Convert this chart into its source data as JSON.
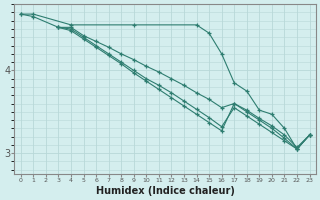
{
  "title": "",
  "xlabel": "Humidex (Indice chaleur)",
  "ylabel": "",
  "bg_color": "#d4eeee",
  "line_color": "#2e7d70",
  "grid_color": "#b8d8d8",
  "axis_color": "#888888",
  "tick_label_color": "#555555",
  "xlim": [
    -0.5,
    23.5
  ],
  "ylim": [
    2.75,
    4.8
  ],
  "yticks": [
    3,
    4
  ],
  "xticks": [
    0,
    1,
    2,
    3,
    4,
    5,
    6,
    7,
    8,
    9,
    10,
    11,
    12,
    13,
    14,
    15,
    16,
    17,
    18,
    19,
    20,
    21,
    22,
    23
  ],
  "lines": [
    {
      "x": [
        0,
        1,
        4,
        9,
        14,
        15,
        16,
        17,
        18,
        19,
        20,
        21,
        22,
        23
      ],
      "y": [
        4.68,
        4.68,
        4.55,
        4.55,
        4.55,
        4.45,
        4.2,
        3.85,
        3.75,
        3.52,
        3.47,
        3.3,
        3.05,
        3.22
      ]
    },
    {
      "x": [
        3,
        4,
        5,
        6,
        7,
        8,
        9,
        10,
        11,
        12,
        13,
        14,
        15,
        16,
        17,
        18,
        19,
        20,
        21,
        22,
        23
      ],
      "y": [
        4.52,
        4.52,
        4.42,
        4.35,
        4.28,
        4.2,
        4.13,
        4.05,
        3.98,
        3.9,
        3.82,
        3.73,
        3.65,
        3.55,
        3.6,
        3.52,
        3.42,
        3.33,
        3.22,
        3.07,
        3.22
      ]
    },
    {
      "x": [
        3,
        4,
        5,
        6,
        7,
        8,
        9,
        10,
        11,
        12,
        13,
        14,
        15,
        16,
        17,
        18,
        19,
        20,
        21,
        22,
        23
      ],
      "y": [
        4.52,
        4.48,
        4.38,
        4.28,
        4.18,
        4.08,
        3.97,
        3.87,
        3.77,
        3.67,
        3.57,
        3.47,
        3.37,
        3.27,
        3.6,
        3.5,
        3.4,
        3.3,
        3.18,
        3.05,
        3.22
      ]
    },
    {
      "x": [
        0,
        1,
        3,
        4,
        5,
        6,
        7,
        8,
        9,
        10,
        11,
        12,
        13,
        14,
        15,
        16,
        17,
        18,
        19,
        20,
        21,
        22,
        23
      ],
      "y": [
        4.68,
        4.65,
        4.52,
        4.5,
        4.4,
        4.3,
        4.2,
        4.1,
        4.0,
        3.9,
        3.82,
        3.73,
        3.63,
        3.53,
        3.43,
        3.32,
        3.55,
        3.45,
        3.35,
        3.25,
        3.15,
        3.05,
        3.22
      ]
    }
  ]
}
